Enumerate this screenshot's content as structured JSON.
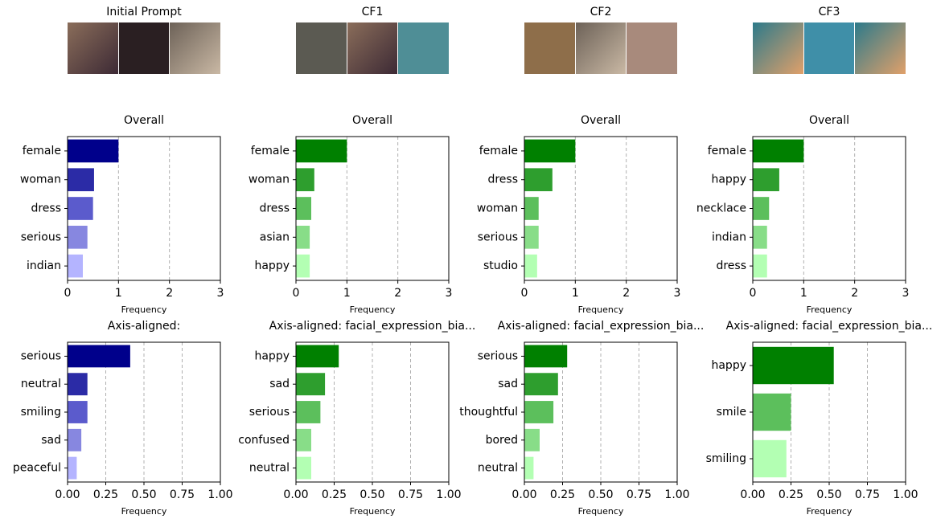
{
  "columns": [
    "Initial Prompt",
    "CF1",
    "CF2",
    "CF3"
  ],
  "chart_data": [
    {
      "type": "barh",
      "title": "Overall",
      "xlabel": "Frequency",
      "categories": [
        "female",
        "woman",
        "dress",
        "serious",
        "indian"
      ],
      "values": [
        1.0,
        0.52,
        0.5,
        0.39,
        0.3
      ],
      "colors": [
        "#00008b",
        "#2b2ba6",
        "#5b5bcc",
        "#8787e0",
        "#b4b4ff"
      ],
      "xlim": [
        0,
        3
      ],
      "xticks": [
        0,
        1,
        2,
        3
      ],
      "grid": true
    },
    {
      "type": "barh",
      "title": "Overall",
      "xlabel": "Frequency",
      "categories": [
        "female",
        "woman",
        "dress",
        "asian",
        "happy"
      ],
      "values": [
        1.0,
        0.36,
        0.3,
        0.27,
        0.27
      ],
      "colors": [
        "#008000",
        "#2e9e2e",
        "#5cbf5c",
        "#88dd88",
        "#b3ffb3"
      ],
      "xlim": [
        0,
        3
      ],
      "xticks": [
        0,
        1,
        2,
        3
      ],
      "grid": true
    },
    {
      "type": "barh",
      "title": "Overall",
      "xlabel": "Frequency",
      "categories": [
        "female",
        "dress",
        "woman",
        "serious",
        "studio"
      ],
      "values": [
        1.0,
        0.55,
        0.28,
        0.28,
        0.25
      ],
      "colors": [
        "#008000",
        "#2e9e2e",
        "#5cbf5c",
        "#88dd88",
        "#b3ffb3"
      ],
      "xlim": [
        0,
        3
      ],
      "xticks": [
        0,
        1,
        2,
        3
      ],
      "grid": true
    },
    {
      "type": "barh",
      "title": "Overall",
      "xlabel": "Frequency",
      "categories": [
        "female",
        "happy",
        "necklace",
        "indian",
        "dress"
      ],
      "values": [
        1.0,
        0.52,
        0.32,
        0.28,
        0.28
      ],
      "colors": [
        "#008000",
        "#2e9e2e",
        "#5cbf5c",
        "#88dd88",
        "#b3ffb3"
      ],
      "xlim": [
        0,
        3
      ],
      "xticks": [
        0,
        1,
        2,
        3
      ],
      "grid": true
    },
    {
      "type": "barh",
      "title": "Axis-aligned:",
      "xlabel": "Frequency",
      "categories": [
        "serious",
        "neutral",
        "smiling",
        "sad",
        "peaceful"
      ],
      "values": [
        0.41,
        0.13,
        0.13,
        0.09,
        0.06
      ],
      "colors": [
        "#00008b",
        "#2b2ba6",
        "#5b5bcc",
        "#8787e0",
        "#b4b4ff"
      ],
      "xlim": [
        0,
        1
      ],
      "xticks": [
        {
          "value": 0,
          "label": "0.00"
        },
        {
          "value": 0.25,
          "label": "0.25"
        },
        {
          "value": 0.5,
          "label": "0.50"
        },
        {
          "value": 0.75,
          "label": "0.75"
        },
        {
          "value": 1,
          "label": "1.00"
        }
      ],
      "grid": true
    },
    {
      "type": "barh",
      "title": "Axis-aligned: facial_expression_bia...",
      "xlabel": "Frequency",
      "categories": [
        "happy",
        "sad",
        "serious",
        "confused",
        "neutral"
      ],
      "values": [
        0.28,
        0.19,
        0.16,
        0.1,
        0.1
      ],
      "colors": [
        "#008000",
        "#2e9e2e",
        "#5cbf5c",
        "#88dd88",
        "#b3ffb3"
      ],
      "xlim": [
        0,
        1
      ],
      "xticks": [
        {
          "value": 0,
          "label": "0.00"
        },
        {
          "value": 0.25,
          "label": "0.25"
        },
        {
          "value": 0.5,
          "label": "0.50"
        },
        {
          "value": 0.75,
          "label": "0.75"
        },
        {
          "value": 1,
          "label": "1.00"
        }
      ],
      "grid": true
    },
    {
      "type": "barh",
      "title": "Axis-aligned: facial_expression_bia...",
      "xlabel": "Frequency",
      "categories": [
        "serious",
        "sad",
        "thoughtful",
        "bored",
        "neutral"
      ],
      "values": [
        0.28,
        0.22,
        0.19,
        0.1,
        0.06
      ],
      "colors": [
        "#008000",
        "#2e9e2e",
        "#5cbf5c",
        "#88dd88",
        "#b3ffb3"
      ],
      "xlim": [
        0,
        1
      ],
      "xticks": [
        {
          "value": 0,
          "label": "0.00"
        },
        {
          "value": 0.25,
          "label": "0.25"
        },
        {
          "value": 0.5,
          "label": "0.50"
        },
        {
          "value": 0.75,
          "label": "0.75"
        },
        {
          "value": 1,
          "label": "1.00"
        }
      ],
      "grid": true
    },
    {
      "type": "barh",
      "title": "Axis-aligned: facial_expression_bia...",
      "xlabel": "Frequency",
      "categories": [
        "happy",
        "smile",
        "smiling"
      ],
      "values": [
        0.53,
        0.25,
        0.22
      ],
      "colors": [
        "#008000",
        "#5cbf5c",
        "#b3ffb3"
      ],
      "xlim": [
        0,
        1
      ],
      "xticks": [
        {
          "value": 0,
          "label": "0.00"
        },
        {
          "value": 0.25,
          "label": "0.25"
        },
        {
          "value": 0.5,
          "label": "0.50"
        },
        {
          "value": 0.75,
          "label": "0.75"
        },
        {
          "value": 1,
          "label": "1.00"
        }
      ],
      "grid": true
    }
  ]
}
